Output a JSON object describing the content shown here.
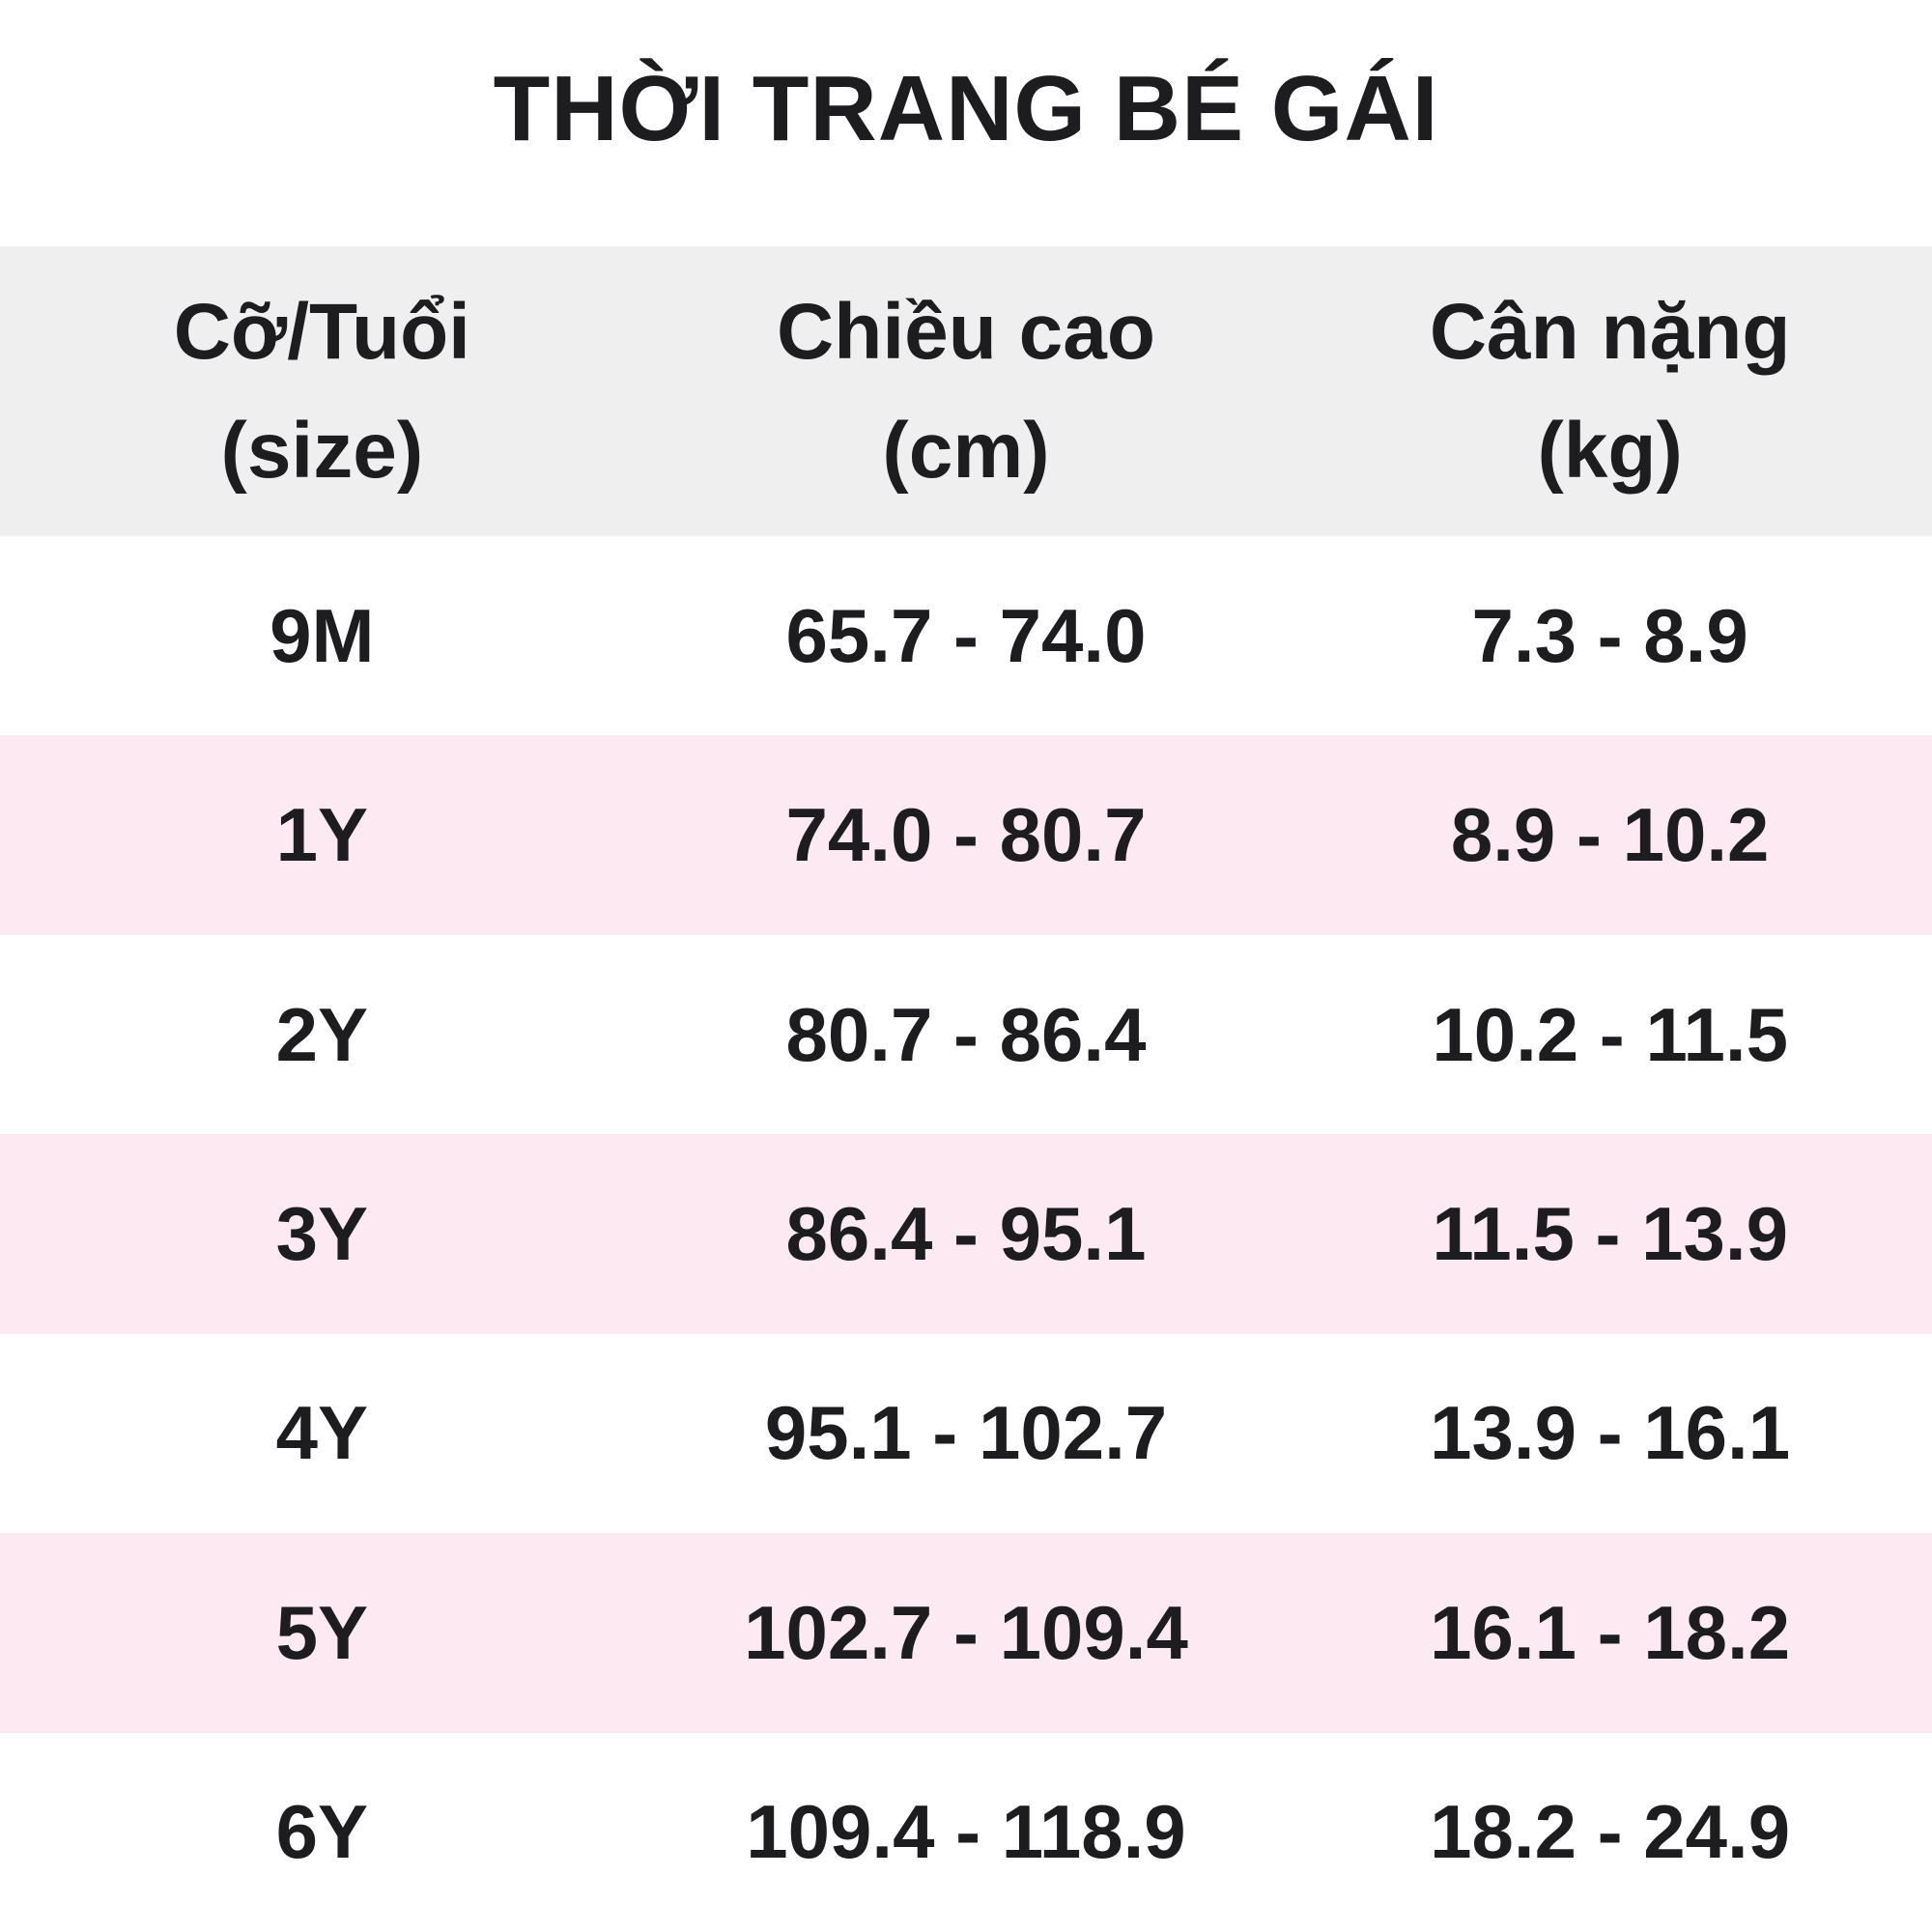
{
  "title": "THỜI TRANG BÉ GÁI",
  "colors": {
    "header_bg": "#efefef",
    "row_bg": "#ffffff",
    "row_alt_bg": "#fce9f1",
    "text": "#1d1d1f"
  },
  "table": {
    "headers": [
      {
        "line1": "Cỡ/Tuổi",
        "line2": "(size)"
      },
      {
        "line1": "Chiều cao",
        "line2": "(cm)"
      },
      {
        "line1": "Cân nặng",
        "line2": "(kg)"
      }
    ],
    "rows": [
      {
        "size": "9M",
        "height": "65.7 - 74.0",
        "weight": "7.3 - 8.9"
      },
      {
        "size": "1Y",
        "height": "74.0 - 80.7",
        "weight": "8.9 - 10.2"
      },
      {
        "size": "2Y",
        "height": "80.7 - 86.4",
        "weight": "10.2 - 11.5"
      },
      {
        "size": "3Y",
        "height": "86.4 - 95.1",
        "weight": "11.5 - 13.9"
      },
      {
        "size": "4Y",
        "height": "95.1 - 102.7",
        "weight": "13.9 - 16.1"
      },
      {
        "size": "5Y",
        "height": "102.7 - 109.4",
        "weight": "16.1 - 18.2"
      },
      {
        "size": "6Y",
        "height": "109.4 - 118.9",
        "weight": "18.2 - 24.9"
      }
    ]
  },
  "chart_data": {
    "type": "table",
    "title": "THỜI TRANG BÉ GÁI",
    "columns": [
      "Cỡ/Tuổi (size)",
      "Chiều cao (cm)",
      "Cân nặng (kg)"
    ],
    "rows": [
      [
        "9M",
        "65.7 - 74.0",
        "7.3 - 8.9"
      ],
      [
        "1Y",
        "74.0 - 80.7",
        "8.9 - 10.2"
      ],
      [
        "2Y",
        "80.7 - 86.4",
        "10.2 - 11.5"
      ],
      [
        "3Y",
        "86.4 - 95.1",
        "11.5 - 13.9"
      ],
      [
        "4Y",
        "95.1 - 102.7",
        "13.9 - 16.1"
      ],
      [
        "5Y",
        "102.7 - 109.4",
        "16.1 - 18.2"
      ],
      [
        "6Y",
        "109.4 - 118.9",
        "18.2 - 24.9"
      ]
    ],
    "layout": {
      "header_background": "#efefef",
      "alternating_row_background": "#fce9f1",
      "alternate_rows": [
        "1Y",
        "3Y",
        "5Y"
      ],
      "grid": false
    }
  }
}
